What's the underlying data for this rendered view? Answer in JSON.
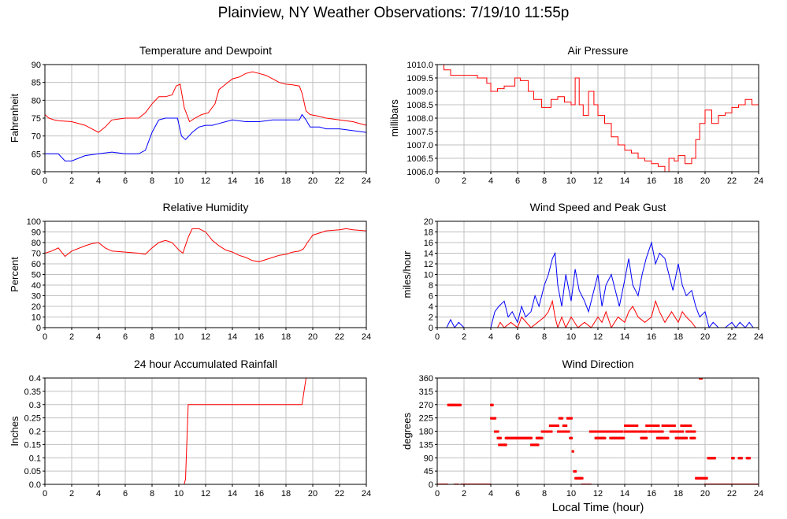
{
  "page": {
    "title": "Plainview, NY Weather Observations: 7/19/10 11:55p",
    "xaxis_label": "Local Time (hour)"
  },
  "colors": {
    "primary": "#ff0000",
    "secondary": "#0000ff",
    "grid": "#c0c0c0",
    "frame": "#000000"
  },
  "chart_data": [
    {
      "type": "line",
      "title": "Temperature and Dewpoint",
      "ylabel": "Fahrenheit",
      "xlim": [
        0,
        24
      ],
      "ylim": [
        60,
        90
      ],
      "xticks": [
        0,
        2,
        4,
        6,
        8,
        10,
        12,
        14,
        16,
        18,
        20,
        22,
        24
      ],
      "yticks": [
        "60",
        "65",
        "70",
        "75",
        "80",
        "85",
        "90"
      ],
      "grid": true,
      "series": [
        {
          "color": "#ff0000",
          "x": [
            0,
            0.3,
            0.7,
            1,
            2,
            3,
            3.5,
            4,
            4.5,
            5,
            6,
            7,
            7.5,
            8,
            8.5,
            9,
            9.5,
            9.8,
            10.1,
            10.4,
            10.8,
            11.2,
            11.7,
            12.2,
            12.7,
            13,
            13.5,
            14,
            14.5,
            15,
            15.5,
            16,
            16.5,
            17,
            17.5,
            18,
            18.5,
            19,
            19.2,
            19.5,
            19.8,
            20.5,
            21,
            22,
            23,
            24
          ],
          "values": [
            76,
            75,
            74.5,
            74.3,
            74,
            73,
            72,
            71,
            72.5,
            74.5,
            75,
            75,
            76.5,
            79,
            81,
            81,
            81.5,
            84,
            84.5,
            78,
            74,
            75,
            76,
            76.5,
            79,
            83,
            84.5,
            86,
            86.5,
            87.5,
            88,
            87.5,
            87,
            86,
            85,
            84.5,
            84.3,
            84,
            82,
            77,
            76,
            75.5,
            75,
            74.5,
            74,
            73
          ]
        },
        {
          "color": "#0000ff",
          "x": [
            0,
            0.5,
            1,
            1.5,
            2,
            3,
            4,
            5,
            6,
            7,
            7.5,
            8,
            8.5,
            9,
            9.5,
            9.9,
            10.2,
            10.5,
            11,
            11.5,
            12,
            12.5,
            13,
            13.5,
            14,
            15,
            16,
            17,
            18,
            19,
            19.2,
            19.5,
            19.8,
            20.5,
            21,
            22,
            23,
            24
          ],
          "values": [
            65,
            65,
            65,
            63,
            63,
            64.5,
            65,
            65.5,
            65,
            65,
            66,
            71,
            74.5,
            75,
            75,
            75,
            70,
            69,
            71,
            72.5,
            73,
            73,
            73.5,
            74,
            74.5,
            74,
            74,
            74.5,
            74.5,
            74.5,
            76,
            74.5,
            72.5,
            72.5,
            72,
            72,
            71.5,
            71
          ]
        }
      ]
    },
    {
      "type": "line",
      "title": "Air Pressure",
      "ylabel": "millibars",
      "xlim": [
        0,
        24
      ],
      "ylim": [
        1006.0,
        1010.0
      ],
      "xticks": [
        0,
        2,
        4,
        6,
        8,
        10,
        12,
        14,
        16,
        18,
        20,
        22,
        24
      ],
      "yticks": [
        "1006.0",
        "1006.5",
        "1007.0",
        "1007.5",
        "1008.0",
        "1008.5",
        "1009.0",
        "1009.5",
        "1010.0"
      ],
      "grid": true,
      "series": [
        {
          "color": "#ff0000",
          "step": true,
          "x": [
            0,
            0.5,
            1,
            2,
            3,
            3.7,
            4,
            4.5,
            5,
            5.8,
            6.2,
            6.8,
            7.2,
            7.8,
            8.5,
            9,
            9.5,
            10,
            10.3,
            10.6,
            10.9,
            11.3,
            11.7,
            12,
            12.5,
            13,
            13.5,
            14,
            14.5,
            15,
            15.5,
            16,
            16.5,
            17,
            17.3,
            17.7,
            18,
            18.5,
            19,
            19.3,
            19.6,
            20,
            20.5,
            21,
            21.5,
            22,
            22.5,
            23,
            23.5,
            24
          ],
          "values": [
            1010.0,
            1009.8,
            1009.6,
            1009.6,
            1009.5,
            1009.3,
            1009.0,
            1009.1,
            1009.2,
            1009.5,
            1009.4,
            1009.0,
            1008.7,
            1008.4,
            1008.7,
            1008.8,
            1008.6,
            1008.5,
            1009.5,
            1008.5,
            1008.1,
            1009.0,
            1008.5,
            1008.1,
            1007.8,
            1007.3,
            1007.0,
            1006.8,
            1006.7,
            1006.5,
            1006.4,
            1006.3,
            1006.2,
            1006.0,
            1006.5,
            1006.4,
            1006.6,
            1006.3,
            1006.5,
            1007.2,
            1007.8,
            1008.3,
            1007.8,
            1008.1,
            1008.2,
            1008.4,
            1008.5,
            1008.7,
            1008.5,
            1008.9
          ]
        }
      ]
    },
    {
      "type": "line",
      "title": "Relative Humidity",
      "ylabel": "Percent",
      "xlim": [
        0,
        24
      ],
      "ylim": [
        0,
        100
      ],
      "xticks": [
        0,
        2,
        4,
        6,
        8,
        10,
        12,
        14,
        16,
        18,
        20,
        22,
        24
      ],
      "yticks": [
        "0",
        "10",
        "20",
        "30",
        "40",
        "50",
        "60",
        "70",
        "80",
        "90",
        "100"
      ],
      "grid": true,
      "series": [
        {
          "color": "#ff0000",
          "x": [
            0,
            0.5,
            1,
            1.5,
            2,
            3,
            3.5,
            4,
            4.5,
            5,
            6,
            7,
            7.5,
            8,
            8.5,
            9,
            9.5,
            10,
            10.3,
            10.7,
            11,
            11.5,
            12,
            12.5,
            13,
            13.5,
            14,
            14.5,
            15,
            15.5,
            16,
            16.5,
            17,
            17.5,
            18,
            18.5,
            19,
            19.3,
            19.6,
            20,
            21,
            22,
            22.5,
            23,
            24
          ],
          "values": [
            70,
            72,
            75,
            67,
            72,
            77,
            79,
            80,
            75,
            72,
            71,
            70,
            69,
            75,
            80,
            82,
            80,
            73,
            70,
            85,
            93,
            93,
            90,
            82,
            77,
            73,
            71,
            68,
            66,
            63,
            62,
            64,
            66,
            68,
            69,
            71,
            72,
            74,
            80,
            87,
            91,
            92,
            93,
            92,
            91
          ]
        }
      ]
    },
    {
      "type": "line",
      "title": "Wind Speed and Peak Gust",
      "ylabel": "miles/hour",
      "xlim": [
        0,
        24
      ],
      "ylim": [
        0,
        20
      ],
      "xticks": [
        0,
        2,
        4,
        6,
        8,
        10,
        12,
        14,
        16,
        18,
        20,
        22,
        24
      ],
      "yticks": [
        "0",
        "2",
        "4",
        "6",
        "8",
        "10",
        "12",
        "14",
        "16",
        "18",
        "20"
      ],
      "grid": true,
      "series": [
        {
          "color": "#0000ff",
          "x": [
            0,
            0.7,
            1.0,
            1.3,
            1.6,
            2,
            3,
            4,
            4.3,
            4.6,
            5,
            5.3,
            5.6,
            6,
            6.3,
            6.6,
            7,
            7.3,
            7.6,
            8,
            8.3,
            8.6,
            8.8,
            9,
            9.3,
            9.6,
            10,
            10.3,
            10.6,
            11,
            11.3,
            11.6,
            12,
            12.3,
            12.6,
            13,
            13.3,
            13.6,
            14,
            14.3,
            14.6,
            15,
            15.3,
            15.6,
            16,
            16.3,
            16.6,
            17,
            17.3,
            17.6,
            18,
            18.3,
            18.6,
            19,
            19.3,
            19.6,
            20,
            20.3,
            20.6,
            21,
            21.5,
            22,
            22.3,
            22.6,
            23,
            23.3,
            23.6,
            24
          ],
          "values": [
            0,
            0,
            1.5,
            0,
            1,
            0,
            0,
            0,
            3,
            4,
            5,
            2,
            3,
            1,
            4,
            2,
            3,
            6,
            4,
            8,
            10,
            13,
            14,
            8,
            4,
            10,
            5,
            11,
            7,
            5,
            3,
            6,
            10,
            4,
            8,
            10,
            7,
            4,
            9,
            13,
            8,
            6,
            10,
            13,
            16,
            12,
            14,
            13,
            10,
            7,
            12,
            8,
            6,
            7,
            4,
            2,
            3,
            0,
            1,
            0,
            0,
            1,
            0,
            1,
            0,
            1,
            0,
            0
          ]
        },
        {
          "color": "#ff0000",
          "x": [
            0,
            4.5,
            4.7,
            5,
            5.5,
            6,
            6.3,
            7,
            7.5,
            8,
            8.3,
            8.6,
            8.8,
            9,
            9.3,
            9.6,
            10,
            10.5,
            11,
            11.5,
            12,
            12.3,
            12.6,
            13,
            13.5,
            14,
            14.3,
            14.6,
            15,
            15.5,
            16,
            16.3,
            16.6,
            17,
            17.5,
            18,
            18.3,
            18.6,
            19,
            19.3,
            24
          ],
          "values": [
            0,
            0,
            1,
            0,
            1,
            0,
            2,
            0,
            1,
            2,
            3,
            5,
            2,
            0,
            2,
            0,
            2,
            0,
            1,
            0,
            2,
            1,
            3,
            0,
            2,
            1,
            3,
            4,
            2,
            1,
            2,
            5,
            3,
            1,
            3,
            1,
            3,
            2,
            1,
            0,
            0
          ]
        }
      ]
    },
    {
      "type": "line",
      "title": "24 hour Accumulated Rainfall",
      "ylabel": "Inches",
      "xlim": [
        0,
        24
      ],
      "ylim": [
        0,
        0.4
      ],
      "xticks": [
        0,
        2,
        4,
        6,
        8,
        10,
        12,
        14,
        16,
        18,
        20,
        22,
        24
      ],
      "yticks": [
        "0.0",
        "0.05",
        "0.1",
        "0.15",
        "0.2",
        "0.25",
        "0.3",
        "0.35",
        "0.4"
      ],
      "grid": true,
      "series": [
        {
          "color": "#ff0000",
          "x": [
            0,
            10.4,
            10.5,
            10.7,
            19.2,
            19.35,
            19.5,
            24
          ],
          "values": [
            0,
            0,
            0.02,
            0.3,
            0.3,
            0.35,
            0.4,
            0.4
          ]
        }
      ]
    },
    {
      "type": "scatter",
      "title": "Wind Direction",
      "ylabel": "degrees",
      "xlim": [
        0,
        24
      ],
      "ylim": [
        0,
        360
      ],
      "xticks": [
        0,
        2,
        4,
        6,
        8,
        10,
        12,
        14,
        16,
        18,
        20,
        22,
        24
      ],
      "yticks": [
        "0",
        "45",
        "90",
        "135",
        "180",
        "225",
        "270",
        "315",
        "360"
      ],
      "grid": true,
      "series": [
        {
          "color": "#ff0000",
          "groups": [
            {
              "x0": 0,
              "x1": 0.7,
              "y": 0
            },
            {
              "x0": 0.8,
              "x1": 1.4,
              "y": 270
            },
            {
              "x0": 1.5,
              "x1": 1.7,
              "y": 270
            },
            {
              "x0": 1.3,
              "x1": 1.5,
              "y": 0
            },
            {
              "x0": 1.8,
              "x1": 3.9,
              "y": 0
            },
            {
              "x0": 4.0,
              "x1": 4.1,
              "y": 270
            },
            {
              "x0": 4.0,
              "x1": 4.3,
              "y": 225
            },
            {
              "x0": 4.3,
              "x1": 4.5,
              "y": 180
            },
            {
              "x0": 4.5,
              "x1": 4.7,
              "y": 158
            },
            {
              "x0": 4.6,
              "x1": 5.1,
              "y": 135
            },
            {
              "x0": 5.1,
              "x1": 7.0,
              "y": 158
            },
            {
              "x0": 7.0,
              "x1": 7.5,
              "y": 135
            },
            {
              "x0": 7.4,
              "x1": 7.8,
              "y": 158
            },
            {
              "x0": 7.8,
              "x1": 8.5,
              "y": 180
            },
            {
              "x0": 8.4,
              "x1": 9.0,
              "y": 200
            },
            {
              "x0": 9.0,
              "x1": 9.8,
              "y": 180
            },
            {
              "x0": 9.1,
              "x1": 9.3,
              "y": 225
            },
            {
              "x0": 9.4,
              "x1": 9.6,
              "y": 200
            },
            {
              "x0": 9.7,
              "x1": 10.0,
              "y": 225
            },
            {
              "x0": 9.9,
              "x1": 10.0,
              "y": 158
            },
            {
              "x0": 10.1,
              "x1": 10.1,
              "y": 113
            },
            {
              "x0": 10.2,
              "x1": 10.3,
              "y": 45
            },
            {
              "x0": 10.3,
              "x1": 10.8,
              "y": 22
            },
            {
              "x0": 10.8,
              "x1": 11.4,
              "y": 0
            },
            {
              "x0": 11.4,
              "x1": 12.4,
              "y": 180
            },
            {
              "x0": 11.8,
              "x1": 12.5,
              "y": 158
            },
            {
              "x0": 12.5,
              "x1": 13.8,
              "y": 180
            },
            {
              "x0": 12.9,
              "x1": 13.9,
              "y": 158
            },
            {
              "x0": 14.0,
              "x1": 14.2,
              "y": 200
            },
            {
              "x0": 14.0,
              "x1": 14.8,
              "y": 180
            },
            {
              "x0": 14.3,
              "x1": 14.9,
              "y": 200
            },
            {
              "x0": 14.8,
              "x1": 15.6,
              "y": 180
            },
            {
              "x0": 15.2,
              "x1": 15.6,
              "y": 158
            },
            {
              "x0": 15.6,
              "x1": 16.5,
              "y": 200
            },
            {
              "x0": 15.8,
              "x1": 16.8,
              "y": 180
            },
            {
              "x0": 16.4,
              "x1": 17.2,
              "y": 158
            },
            {
              "x0": 16.8,
              "x1": 17.7,
              "y": 200
            },
            {
              "x0": 17.4,
              "x1": 18.3,
              "y": 180
            },
            {
              "x0": 17.8,
              "x1": 18.6,
              "y": 158
            },
            {
              "x0": 18.2,
              "x1": 18.9,
              "y": 200
            },
            {
              "x0": 18.6,
              "x1": 19.2,
              "y": 180
            },
            {
              "x0": 18.9,
              "x1": 19.2,
              "y": 158
            },
            {
              "x0": 19.3,
              "x1": 20.1,
              "y": 22
            },
            {
              "x0": 19.6,
              "x1": 19.7,
              "y": 360
            },
            {
              "x0": 20.2,
              "x1": 20.7,
              "y": 90
            },
            {
              "x0": 20.0,
              "x1": 22.5,
              "y": 0
            },
            {
              "x0": 22.0,
              "x1": 22.1,
              "y": 90
            },
            {
              "x0": 22.5,
              "x1": 22.7,
              "y": 90
            },
            {
              "x0": 23.1,
              "x1": 23.3,
              "y": 90
            },
            {
              "x0": 22.6,
              "x1": 24.0,
              "y": 0
            }
          ]
        }
      ]
    }
  ]
}
